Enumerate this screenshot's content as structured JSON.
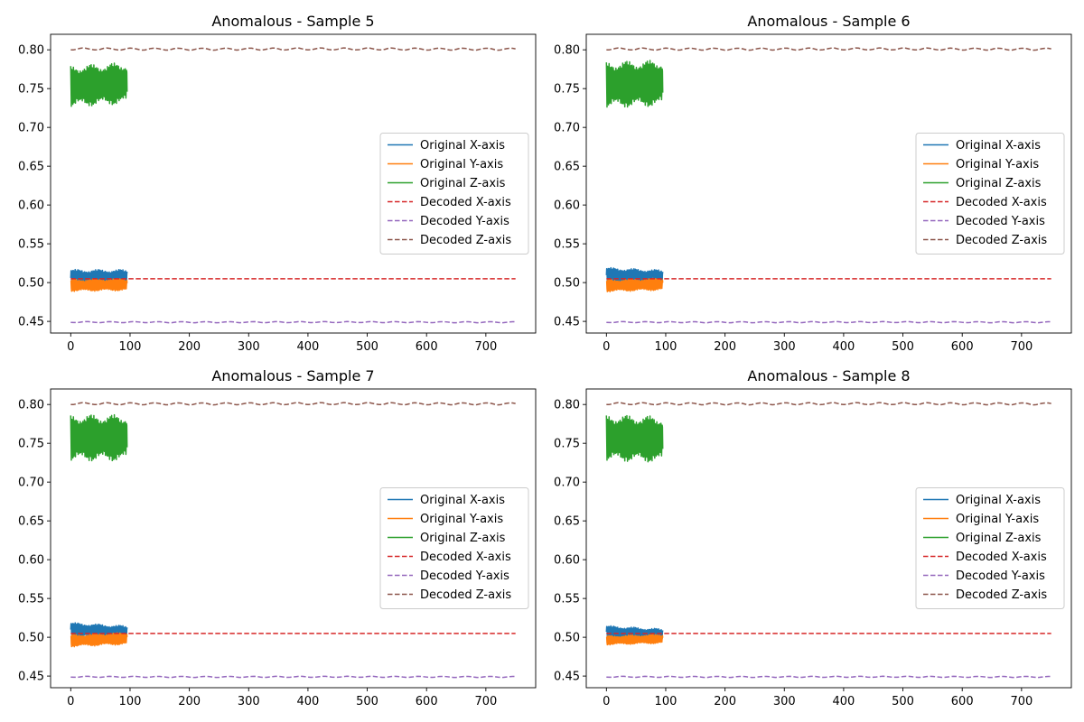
{
  "chart_data": [
    {
      "type": "line",
      "title": "Anomalous - Sample 5",
      "xlim": [
        -34,
        784
      ],
      "ylim": [
        0.435,
        0.82
      ],
      "xticks": [
        0,
        100,
        200,
        300,
        400,
        500,
        600,
        700
      ],
      "yticks": [
        0.45,
        0.5,
        0.55,
        0.6,
        0.65,
        0.7,
        0.75,
        0.8
      ],
      "grid": false,
      "legend_position": "center-right",
      "series": [
        {
          "name": "Original X-axis",
          "color": "#1f77b4",
          "style": "solid",
          "x_range": [
            0,
            95
          ],
          "center": 0.506,
          "amplitude": 0.011,
          "period": 2.3,
          "trend": 0
        },
        {
          "name": "Original Y-axis",
          "color": "#ff7f0e",
          "style": "solid",
          "x_range": [
            0,
            95
          ],
          "center": 0.497,
          "amplitude": 0.008,
          "period": 2.3,
          "trend": 0.001
        },
        {
          "name": "Original Z-axis",
          "color": "#2ca02c",
          "style": "solid",
          "x_range": [
            0,
            95
          ],
          "center": 0.755,
          "amplitude": 0.027,
          "period": 2.3,
          "trend": 0.004
        },
        {
          "name": "Decoded X-axis",
          "color": "#d62728",
          "style": "dashed",
          "x_range": [
            0,
            750
          ],
          "center": 0.505,
          "amplitude": 0,
          "period": 40,
          "trend": 0
        },
        {
          "name": "Decoded Y-axis",
          "color": "#9467bd",
          "style": "dashed",
          "x_range": [
            0,
            750
          ],
          "center": 0.449,
          "amplitude": 0.0008,
          "period": 40,
          "trend": 0
        },
        {
          "name": "Decoded Z-axis",
          "color": "#8c564b",
          "style": "dashed",
          "x_range": [
            0,
            750
          ],
          "center": 0.801,
          "amplitude": 0.0015,
          "period": 40,
          "trend": 0
        }
      ]
    },
    {
      "type": "line",
      "title": "Anomalous - Sample 6",
      "xlim": [
        -34,
        784
      ],
      "ylim": [
        0.435,
        0.82
      ],
      "xticks": [
        0,
        100,
        200,
        300,
        400,
        500,
        600,
        700
      ],
      "yticks": [
        0.45,
        0.5,
        0.55,
        0.6,
        0.65,
        0.7,
        0.75,
        0.8
      ],
      "grid": false,
      "legend_position": "center-right",
      "series": [
        {
          "name": "Original X-axis",
          "color": "#1f77b4",
          "style": "solid",
          "x_range": [
            0,
            95
          ],
          "center": 0.508,
          "amplitude": 0.01,
          "period": 2.3,
          "trend": -0.003
        },
        {
          "name": "Original Y-axis",
          "color": "#ff7f0e",
          "style": "solid",
          "x_range": [
            0,
            95
          ],
          "center": 0.497,
          "amplitude": 0.008,
          "period": 2.3,
          "trend": 0.002
        },
        {
          "name": "Original Z-axis",
          "color": "#2ca02c",
          "style": "solid",
          "x_range": [
            0,
            95
          ],
          "center": 0.756,
          "amplitude": 0.03,
          "period": 2.3,
          "trend": 0.002
        },
        {
          "name": "Decoded X-axis",
          "color": "#d62728",
          "style": "dashed",
          "x_range": [
            0,
            750
          ],
          "center": 0.505,
          "amplitude": 0,
          "period": 40,
          "trend": 0
        },
        {
          "name": "Decoded Y-axis",
          "color": "#9467bd",
          "style": "dashed",
          "x_range": [
            0,
            750
          ],
          "center": 0.449,
          "amplitude": 0.0008,
          "period": 40,
          "trend": 0
        },
        {
          "name": "Decoded Z-axis",
          "color": "#8c564b",
          "style": "dashed",
          "x_range": [
            0,
            750
          ],
          "center": 0.801,
          "amplitude": 0.0015,
          "period": 40,
          "trend": 0
        }
      ]
    },
    {
      "type": "line",
      "title": "Anomalous - Sample 7",
      "xlim": [
        -34,
        784
      ],
      "ylim": [
        0.435,
        0.82
      ],
      "xticks": [
        0,
        100,
        200,
        300,
        400,
        500,
        600,
        700
      ],
      "yticks": [
        0.45,
        0.5,
        0.55,
        0.6,
        0.65,
        0.7,
        0.75,
        0.8
      ],
      "grid": false,
      "legend_position": "center-right",
      "series": [
        {
          "name": "Original X-axis",
          "color": "#1f77b4",
          "style": "solid",
          "x_range": [
            0,
            95
          ],
          "center": 0.508,
          "amplitude": 0.009,
          "period": 2.3,
          "trend": -0.004
        },
        {
          "name": "Original Y-axis",
          "color": "#ff7f0e",
          "style": "solid",
          "x_range": [
            0,
            95
          ],
          "center": 0.497,
          "amplitude": 0.008,
          "period": 2.3,
          "trend": 0.003
        },
        {
          "name": "Original Z-axis",
          "color": "#2ca02c",
          "style": "solid",
          "x_range": [
            0,
            95
          ],
          "center": 0.757,
          "amplitude": 0.03,
          "period": 2.3,
          "trend": 0
        },
        {
          "name": "Decoded X-axis",
          "color": "#d62728",
          "style": "dashed",
          "x_range": [
            0,
            750
          ],
          "center": 0.505,
          "amplitude": 0,
          "period": 40,
          "trend": 0
        },
        {
          "name": "Decoded Y-axis",
          "color": "#9467bd",
          "style": "dashed",
          "x_range": [
            0,
            750
          ],
          "center": 0.449,
          "amplitude": 0.0008,
          "period": 40,
          "trend": 0
        },
        {
          "name": "Decoded Z-axis",
          "color": "#8c564b",
          "style": "dashed",
          "x_range": [
            0,
            750
          ],
          "center": 0.801,
          "amplitude": 0.0015,
          "period": 40,
          "trend": 0
        }
      ]
    },
    {
      "type": "line",
      "title": "Anomalous - Sample 8",
      "xlim": [
        -34,
        784
      ],
      "ylim": [
        0.435,
        0.82
      ],
      "xticks": [
        0,
        100,
        200,
        300,
        400,
        500,
        600,
        700
      ],
      "yticks": [
        0.45,
        0.5,
        0.55,
        0.6,
        0.65,
        0.7,
        0.75,
        0.8
      ],
      "grid": false,
      "legend_position": "center-right",
      "series": [
        {
          "name": "Original X-axis",
          "color": "#1f77b4",
          "style": "solid",
          "x_range": [
            0,
            95
          ],
          "center": 0.505,
          "amplitude": 0.008,
          "period": 2.3,
          "trend": -0.004
        },
        {
          "name": "Original Y-axis",
          "color": "#ff7f0e",
          "style": "solid",
          "x_range": [
            0,
            95
          ],
          "center": 0.497,
          "amplitude": 0.006,
          "period": 2.3,
          "trend": 0.002
        },
        {
          "name": "Original Z-axis",
          "color": "#2ca02c",
          "style": "solid",
          "x_range": [
            0,
            95
          ],
          "center": 0.756,
          "amplitude": 0.03,
          "period": 2.3,
          "trend": -0.002
        },
        {
          "name": "Decoded X-axis",
          "color": "#d62728",
          "style": "dashed",
          "x_range": [
            0,
            750
          ],
          "center": 0.505,
          "amplitude": 0,
          "period": 40,
          "trend": 0
        },
        {
          "name": "Decoded Y-axis",
          "color": "#9467bd",
          "style": "dashed",
          "x_range": [
            0,
            750
          ],
          "center": 0.449,
          "amplitude": 0.0008,
          "period": 40,
          "trend": 0
        },
        {
          "name": "Decoded Z-axis",
          "color": "#8c564b",
          "style": "dashed",
          "x_range": [
            0,
            750
          ],
          "center": 0.801,
          "amplitude": 0.0015,
          "period": 40,
          "trend": 0
        }
      ]
    }
  ]
}
